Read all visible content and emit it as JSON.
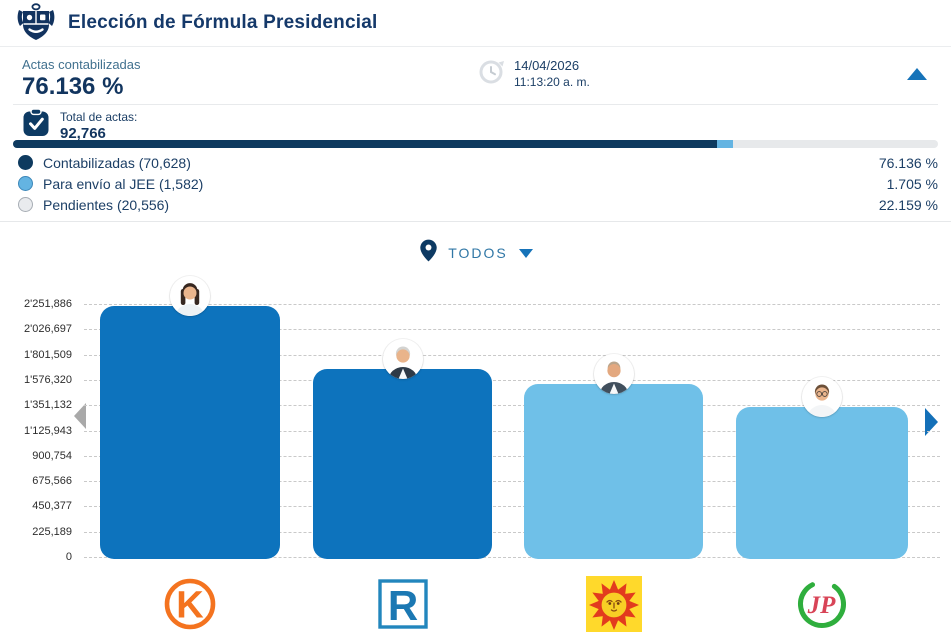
{
  "header": {
    "title": "Elección de Fórmula Presidencial"
  },
  "summary": {
    "label": "Actas contabilizadas",
    "value": "76.136 %",
    "date": "14/04/2026",
    "time": "11:13:20 a. m.",
    "total_label": "Total de actas:",
    "total_value": "92,766",
    "legend": [
      {
        "name": "contabilizadas",
        "label": "Contabilizadas (70,628)",
        "pct": "76.136 %",
        "value": 76.136,
        "color": "#0e3a5f",
        "border": "#0e3a5f"
      },
      {
        "name": "para-envio-al-jee",
        "label": "Para envío al JEE (1,582)",
        "pct": "1.705 %",
        "value": 1.705,
        "color": "#64b4e2",
        "border": "#3c87b9"
      },
      {
        "name": "pendientes",
        "label": "Pendientes (20,556)",
        "pct": "22.159 %",
        "value": 22.159,
        "color": "#e9ebee",
        "border": "#a7adb4"
      }
    ]
  },
  "filter": {
    "label": "TODOS"
  },
  "chart_data": {
    "type": "bar",
    "title": "",
    "xlabel": "",
    "ylabel": "",
    "categories": [
      "Fuerza Popular (K)",
      "Renovación Popular (R)",
      "Perú Primero (sol)",
      "Juntos por el Perú (JP)"
    ],
    "values": [
      2251886,
      1690000,
      1555000,
      1350000
    ],
    "ylim": [
      0,
      2251886
    ],
    "ytick_labels": [
      "2'251,886",
      "2'026,697",
      "1'801,509",
      "1'576,320",
      "1'351,132",
      "1'125,943",
      "900,754",
      "675,566",
      "450,377",
      "225,189",
      "0"
    ],
    "grid": true,
    "legend_position": "none",
    "bar_colors": [
      "#0d73bd",
      "#0d73bd",
      "#6fc0e8",
      "#6fc0e8"
    ],
    "logos": [
      {
        "id": "fuerza-popular",
        "letter": "K",
        "color": "#f4731f",
        "shape": "orange circle outline with K"
      },
      {
        "id": "renovacion-popular",
        "letter": "R",
        "color": "#1b78b3",
        "shape": "blue bordered square with R"
      },
      {
        "id": "peru-primero",
        "letter": "",
        "color": "#e23b1e",
        "bg": "#ffd92b",
        "shape": "yellow square with red sun face"
      },
      {
        "id": "juntos-por-el-peru",
        "letter": "JP",
        "color": "#d84457",
        "ring": "#2fae3d",
        "shape": "green open ring with JP"
      }
    ],
    "candidates": [
      {
        "avatar": "woman-long-dark-hair"
      },
      {
        "avatar": "man-gray-hair-suit"
      },
      {
        "avatar": "man-short-gray-hair-jacket"
      },
      {
        "avatar": "man-glasses-white-shirt"
      }
    ]
  }
}
